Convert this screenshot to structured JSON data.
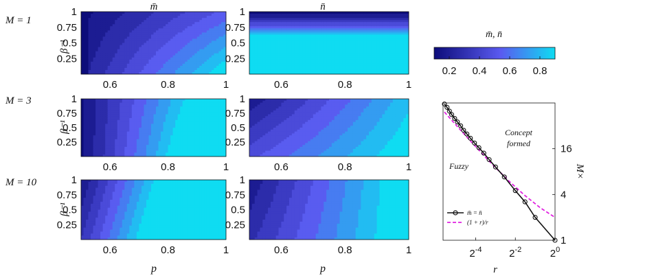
{
  "chart_data": [
    {
      "type": "heatmap",
      "title": "m̄",
      "row": "M = 1",
      "xlabel": "p",
      "ylabel": "β⁻¹",
      "x_ticks": [
        "0.6",
        "0.8",
        "1"
      ],
      "y_ticks": [
        "1",
        "0.75",
        "0.5",
        "0.25"
      ],
      "xlim": [
        0.5,
        1
      ],
      "ylim": [
        0,
        1
      ]
    },
    {
      "type": "heatmap",
      "title": "n̄",
      "row": "M = 1",
      "xlabel": "p",
      "ylabel": "β⁻¹",
      "x_ticks": [
        "0.6",
        "0.8",
        "1"
      ],
      "y_ticks": [
        "1",
        "0.75",
        "0.5",
        "0.25"
      ],
      "xlim": [
        0.5,
        1
      ],
      "ylim": [
        0,
        1
      ]
    },
    {
      "type": "heatmap",
      "title": "m̄",
      "row": "M = 3",
      "x_ticks": [
        "0.6",
        "0.8",
        "1"
      ],
      "y_ticks": [
        "1",
        "0.75",
        "0.5",
        "0.25"
      ],
      "xlim": [
        0.5,
        1
      ],
      "ylim": [
        0,
        1
      ]
    },
    {
      "type": "heatmap",
      "title": "n̄",
      "row": "M = 3",
      "x_ticks": [
        "0.6",
        "0.8",
        "1"
      ],
      "y_ticks": [
        "1",
        "0.75",
        "0.5",
        "0.25"
      ],
      "xlim": [
        0.5,
        1
      ],
      "ylim": [
        0,
        1
      ]
    },
    {
      "type": "heatmap",
      "title": "m̄",
      "row": "M = 10",
      "x_ticks": [
        "0.6",
        "0.8",
        "1"
      ],
      "y_ticks": [
        "1",
        "0.75",
        "0.5",
        "0.25"
      ],
      "xlim": [
        0.5,
        1
      ],
      "ylim": [
        0,
        1
      ]
    },
    {
      "type": "heatmap",
      "title": "n̄",
      "row": "M = 10",
      "x_ticks": [
        "0.6",
        "0.8",
        "1"
      ],
      "y_ticks": [
        "1",
        "0.75",
        "0.5",
        "0.25"
      ],
      "xlim": [
        0.5,
        1
      ],
      "ylim": [
        0,
        1
      ]
    },
    {
      "type": "line",
      "xlabel": "r",
      "ylabel": "M×",
      "xscale": "log2",
      "yscale": "log",
      "x_ticks": [
        "2^-4",
        "2^-2",
        "2^0"
      ],
      "y_ticks": [
        "16",
        "4",
        "1"
      ],
      "xlim": [
        0.02,
        1
      ],
      "ylim": [
        1,
        64
      ],
      "annotations": [
        "Concept formed",
        "Fuzzy"
      ],
      "legend_position": "bottom-left",
      "series": [
        {
          "name": "m̄ = n̄",
          "style": "black line with circle markers",
          "x": [
            0.021,
            0.023,
            0.025,
            0.027,
            0.03,
            0.033,
            0.037,
            0.041,
            0.046,
            0.052,
            0.06,
            0.07,
            0.083,
            0.1,
            0.125,
            0.17,
            0.25,
            0.35,
            0.5,
            1.0
          ],
          "y": [
            62,
            56,
            50,
            45,
            40,
            36,
            32,
            28,
            25,
            22,
            19,
            16.5,
            14,
            11.5,
            9.2,
            6.8,
            4.5,
            3.2,
            2.0,
            1.0
          ]
        },
        {
          "name": "(1 + r)/r",
          "style": "magenta dashed",
          "x": [
            0.021,
            0.03,
            0.05,
            0.1,
            0.2,
            0.35,
            0.6,
            1.0
          ],
          "y": [
            48.6,
            34.3,
            21.0,
            11.0,
            6.0,
            3.86,
            2.67,
            2.0
          ]
        }
      ]
    }
  ],
  "labels": {
    "col1_title": "m̄",
    "col2_title": "n̄",
    "row1": "M = 1",
    "row2": "M = 3",
    "row3": "M = 10",
    "y_axis": "β⁻¹",
    "x_axis": "p",
    "colorbar_title": "m̄, n̄",
    "colorbar_ticks": [
      "0.2",
      "0.4",
      "0.6",
      "0.8"
    ],
    "colorbar_range": [
      0.1,
      0.9
    ],
    "line_xlabel": "r",
    "line_ylabel": "M×",
    "concept_line1": "Concept",
    "concept_line2": "formed",
    "fuzzy": "Fuzzy",
    "legend_series1": "m̄ = n̄",
    "legend_series2": "(1 + r)/r"
  },
  "colors": {
    "dark": "#0c0c7a",
    "mid": "#5a5af0",
    "light": "#0fdcf2",
    "contour": "#111111",
    "dash_series": "#e020e0"
  }
}
